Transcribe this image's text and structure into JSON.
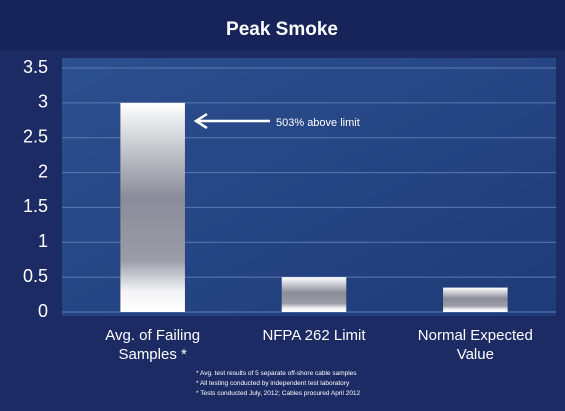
{
  "chart_data": {
    "type": "bar",
    "title": "Peak Smoke",
    "categories": [
      "Avg. of Failing Samples *",
      "NFPA 262 Limit",
      "Normal Expected Value"
    ],
    "values": [
      3.0,
      0.5,
      0.35
    ],
    "ylim": [
      0,
      3.5
    ],
    "yticks": [
      0,
      0.5,
      1,
      1.5,
      2,
      2.5,
      3,
      3.5
    ],
    "grid": true,
    "annotation": "503% above limit",
    "footnotes": [
      "* Avg. test results of 5 separate off-shore cable samples",
      "* All testing conducted by independent test laboratory",
      "* Tests conducted July, 2012; Cables procured April 2012"
    ]
  }
}
